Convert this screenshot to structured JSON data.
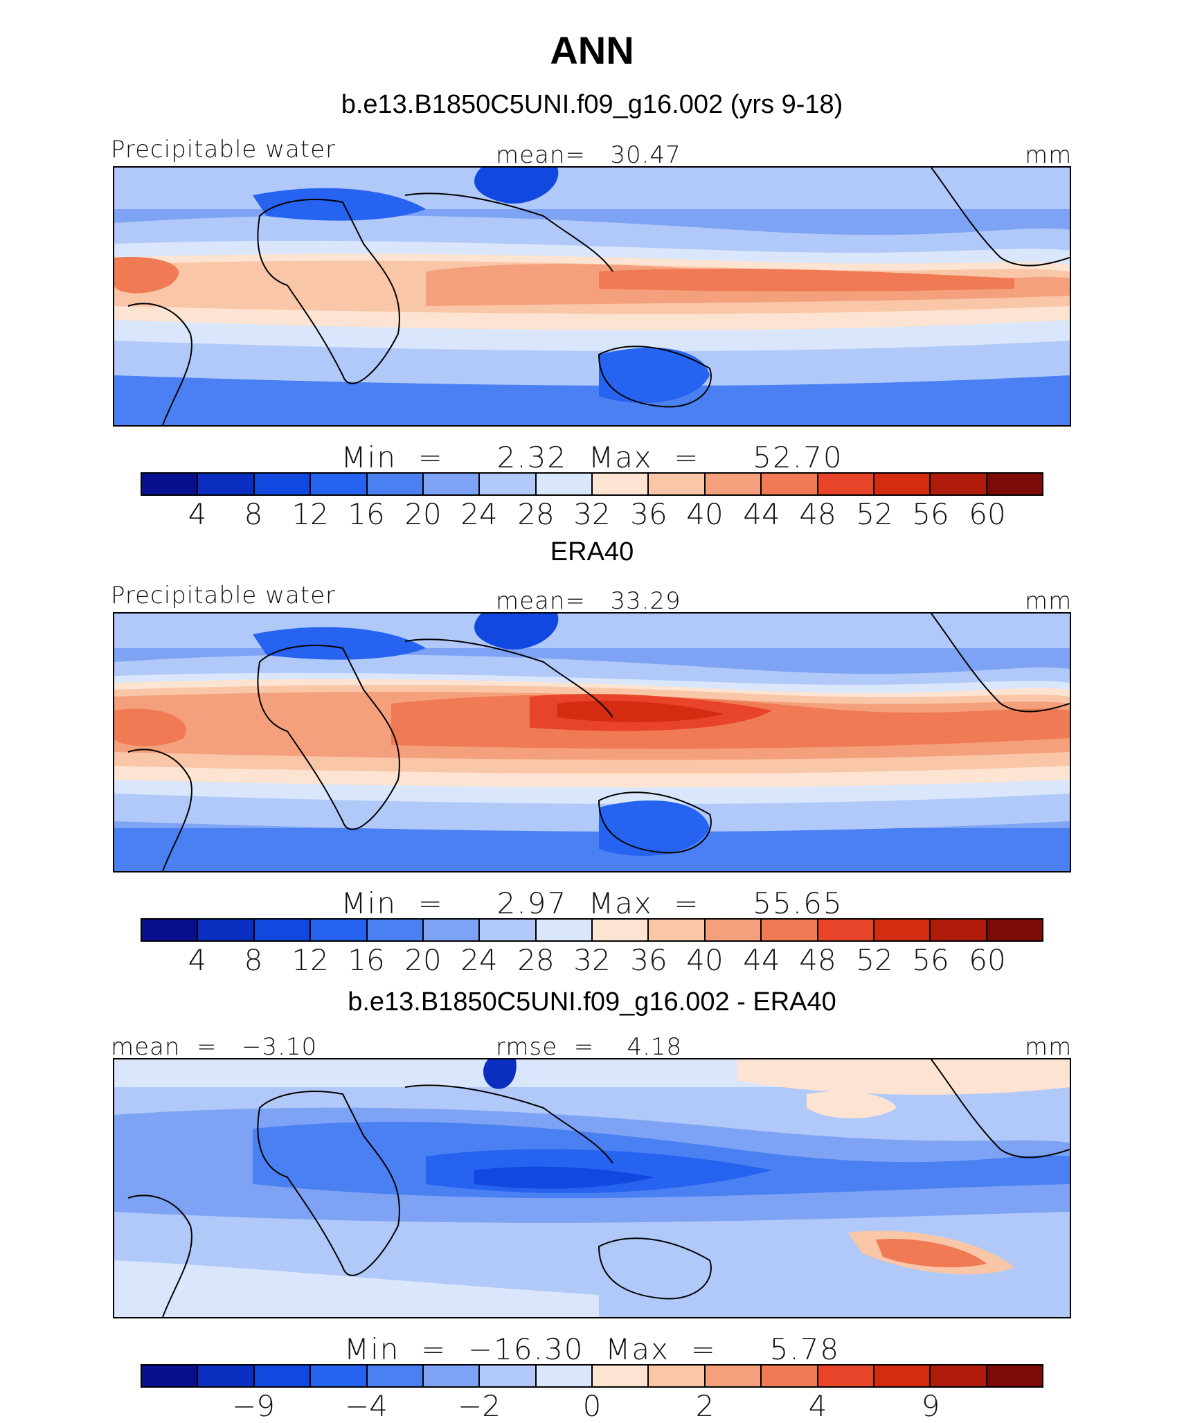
{
  "figure": {
    "title": "ANN"
  },
  "palette": [
    "#08108f",
    "#0a2fc0",
    "#1148e0",
    "#2563f0",
    "#4a80f2",
    "#7ea3f5",
    "#b1c9f8",
    "#d9e6fb",
    "#fde4d2",
    "#f9c6a8",
    "#f5a07c",
    "#f07a54",
    "#e8442a",
    "#d32c10",
    "#b01c0c",
    "#7d0a05"
  ],
  "panels": [
    {
      "title": "b.e13.B1850C5UNI.f09_g16.002 (yrs 9-18)",
      "left_label": "Precipitable water",
      "center_label": "mean=   30.47",
      "right_label": "mm",
      "minmax": "Min  =     2.32  Max  =     52.70",
      "ticks": [
        "4",
        "8",
        "12",
        "16",
        "20",
        "24",
        "28",
        "32",
        "36",
        "40",
        "44",
        "48",
        "52",
        "56",
        "60"
      ]
    },
    {
      "title": "ERA40",
      "left_label": "Precipitable water",
      "center_label": "mean=   33.29",
      "right_label": "mm",
      "minmax": "Min  =     2.97  Max  =     55.65",
      "ticks": [
        "4",
        "8",
        "12",
        "16",
        "20",
        "24",
        "28",
        "32",
        "36",
        "40",
        "44",
        "48",
        "52",
        "56",
        "60"
      ]
    },
    {
      "title": "b.e13.B1850C5UNI.f09_g16.002 - ERA40",
      "left_label": "mean  =   −3.10",
      "center_label": "rmse  =    4.18",
      "right_label": "mm",
      "minmax": "Min  =  −16.30  Max  =     5.78",
      "ticks": [
        "−9",
        "−4",
        "−2",
        "0",
        "2",
        "4",
        "9"
      ]
    }
  ]
}
